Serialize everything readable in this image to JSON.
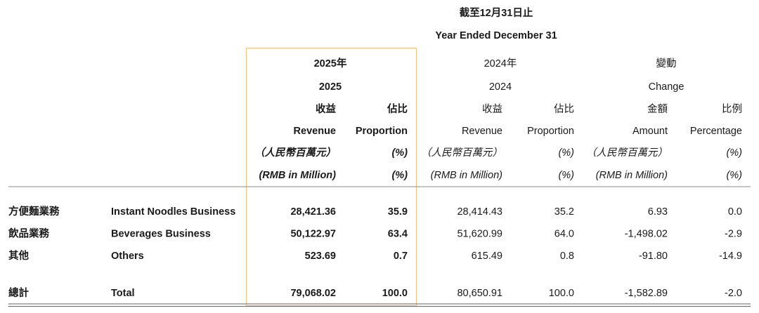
{
  "header": {
    "title_zh": "截至12月31日止",
    "title_en": "Year Ended December 31"
  },
  "column_groups": [
    {
      "zh": "2025年",
      "en": "2025"
    },
    {
      "zh": "2024年",
      "en": "2024"
    },
    {
      "zh": "變動",
      "en": "Change"
    }
  ],
  "columns": [
    {
      "zh": "收益",
      "en": "Revenue",
      "unit_zh": "（人民幣百萬元）",
      "unit_en": "(RMB in Million)"
    },
    {
      "zh": "佔比",
      "en": "Proportion",
      "unit_zh": "(%)",
      "unit_en": "(%)"
    },
    {
      "zh": "收益",
      "en": "Revenue",
      "unit_zh": "（人民幣百萬元）",
      "unit_en": "(RMB in Million)"
    },
    {
      "zh": "佔比",
      "en": "Proportion",
      "unit_zh": "(%)",
      "unit_en": "(%)"
    },
    {
      "zh": "金額",
      "en": "Amount",
      "unit_zh": "（人民幣百萬元）",
      "unit_en": "(RMB in Million)"
    },
    {
      "zh": "比例",
      "en": "Percentage",
      "unit_zh": "(%)",
      "unit_en": "(%)"
    }
  ],
  "rows": [
    {
      "zh": "方便麵業務",
      "en": "Instant Noodles Business",
      "values": [
        "28,421.36",
        "35.9",
        "28,414.43",
        "35.2",
        "6.93",
        "0.0"
      ]
    },
    {
      "zh": "飲品業務",
      "en": "Beverages Business",
      "values": [
        "50,122.97",
        "63.4",
        "51,620.99",
        "64.0",
        "-1,498.02",
        "-2.9"
      ]
    },
    {
      "zh": "其他",
      "en": "Others",
      "values": [
        "523.69",
        "0.7",
        "615.49",
        "0.8",
        "-91.80",
        "-14.9"
      ]
    }
  ],
  "total": {
    "zh": "總計",
    "en": "Total",
    "values": [
      "79,068.02",
      "100.0",
      "80,650.91",
      "100.0",
      "-1,582.89",
      "-2.0"
    ]
  }
}
